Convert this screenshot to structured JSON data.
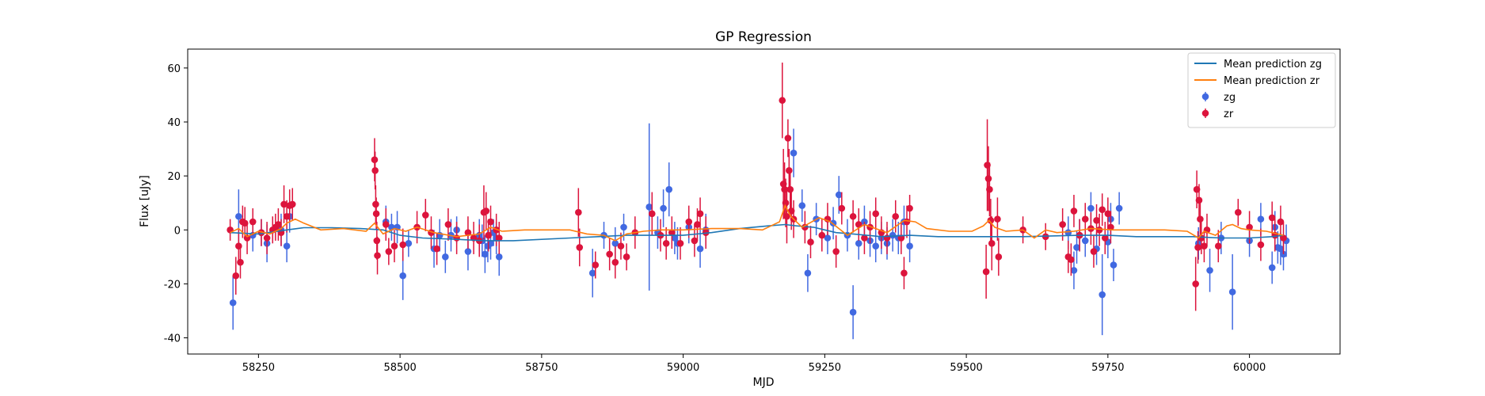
{
  "chart_data": {
    "type": "scatter",
    "title": "GP Regression",
    "xlabel": "MJD",
    "ylabel": "Flux [uJy]",
    "xlim": [
      58125,
      60160
    ],
    "ylim": [
      -46,
      67
    ],
    "xticks": [
      58250,
      58500,
      58750,
      59000,
      59250,
      59500,
      59750,
      60000
    ],
    "yticks": [
      -40,
      -20,
      0,
      20,
      40,
      60
    ],
    "legend": {
      "placement": "top-right",
      "entries": [
        "Mean prediction zg",
        "Mean prediction zr",
        "zg",
        "zr"
      ]
    },
    "colors": {
      "zg_line": "#1f77b4",
      "zr_line": "#ff7f0e",
      "zg_points": "#4169e1",
      "zr_points": "#dc143c"
    },
    "series": [
      {
        "name": "Mean prediction zg",
        "kind": "line",
        "x": [
          58200,
          58250,
          58300,
          58330,
          58380,
          58430,
          58470,
          58500,
          58540,
          58600,
          58650,
          58700,
          58800,
          58900,
          59000,
          59050,
          59100,
          59150,
          59180,
          59200,
          59230,
          59250,
          59270,
          59300,
          59350,
          59400,
          59450,
          59500,
          59600,
          59700,
          59750,
          59800,
          59900,
          59950,
          60000,
          60040,
          60060
        ],
        "y": [
          -1.0,
          -1.5,
          0.0,
          0.8,
          0.8,
          0.5,
          0.0,
          -2.0,
          -3.0,
          -3.5,
          -4.0,
          -4.0,
          -3.0,
          -2.0,
          -2.0,
          -1.0,
          0.5,
          1.5,
          2.0,
          1.5,
          1.0,
          0.0,
          -1.0,
          -1.5,
          -2.5,
          -2.0,
          -2.5,
          -2.5,
          -2.5,
          -2.0,
          -2.0,
          -2.5,
          -2.5,
          -3.0,
          -3.0,
          -2.5,
          -2.0
        ]
      },
      {
        "name": "Mean prediction zr",
        "kind": "line",
        "x": [
          58200,
          58215,
          58230,
          58250,
          58270,
          58290,
          58300,
          58315,
          58330,
          58360,
          58400,
          58440,
          58455,
          58470,
          58490,
          58510,
          58530,
          58560,
          58600,
          58640,
          58660,
          58680,
          58720,
          58800,
          58830,
          58860,
          58880,
          58900,
          58930,
          58960,
          59000,
          59050,
          59100,
          59140,
          59170,
          59180,
          59190,
          59210,
          59240,
          59260,
          59290,
          59320,
          59360,
          59390,
          59410,
          59430,
          59470,
          59510,
          59530,
          59540,
          59550,
          59570,
          59600,
          59620,
          59640,
          59660,
          59690,
          59720,
          59760,
          59800,
          59850,
          59890,
          59910,
          59920,
          59940,
          59960,
          59970,
          59985,
          60000,
          60030,
          60060
        ],
        "y": [
          -1.0,
          0.5,
          -2.5,
          -0.5,
          -1.5,
          0.5,
          2.5,
          4.0,
          2.5,
          0.0,
          0.5,
          -0.5,
          2.5,
          -1.5,
          0.5,
          -0.5,
          1.0,
          -1.0,
          -2.5,
          -1.5,
          1.0,
          -0.5,
          0.0,
          0.0,
          -1.5,
          -2.0,
          -4.0,
          -1.5,
          -0.5,
          0.0,
          0.0,
          0.5,
          0.5,
          0.0,
          3.0,
          9.0,
          5.0,
          1.0,
          4.5,
          3.0,
          -2.0,
          2.0,
          -1.0,
          3.5,
          3.0,
          0.5,
          -0.5,
          -0.5,
          1.5,
          3.5,
          1.0,
          -0.5,
          0.0,
          -3.0,
          0.0,
          -1.0,
          -0.5,
          0.5,
          0.0,
          0.0,
          0.0,
          -0.5,
          -3.0,
          -0.5,
          -2.0,
          1.5,
          2.0,
          0.5,
          0.0,
          -0.5,
          -2.0
        ]
      },
      {
        "name": "zg",
        "kind": "errorbar",
        "x": [
          58205,
          58215,
          58240,
          58255,
          58265,
          58290,
          58300,
          58305,
          58475,
          58485,
          58495,
          58505,
          58515,
          58560,
          58570,
          58580,
          58590,
          58600,
          58620,
          58640,
          58645,
          58650,
          58655,
          58660,
          58665,
          58670,
          58675,
          58840,
          58860,
          58880,
          58895,
          58940,
          58955,
          58965,
          58975,
          58985,
          58990,
          59010,
          59030,
          59040,
          59195,
          59210,
          59220,
          59235,
          59255,
          59265,
          59275,
          59290,
          59300,
          59310,
          59320,
          59330,
          59340,
          59350,
          59360,
          59370,
          59380,
          59390,
          59400,
          59680,
          59690,
          59695,
          59700,
          59710,
          59720,
          59730,
          59740,
          59750,
          59755,
          59760,
          59770,
          59910,
          59930,
          59950,
          59970,
          60000,
          60020,
          60040,
          60045,
          60050,
          60055,
          60060,
          60065
        ],
        "y": [
          -27.0,
          5.0,
          -2.0,
          -1.0,
          -5.0,
          0.0,
          -6.0,
          5.0,
          3.0,
          1.0,
          1.0,
          -17.0,
          -5.0,
          -7.0,
          -2.0,
          -10.0,
          -2.0,
          0.0,
          -8.0,
          -2.0,
          -4.0,
          -9.0,
          -6.0,
          -5.0,
          -1.0,
          -3.0,
          -10.0,
          -16.0,
          -2.0,
          -5.0,
          1.0,
          8.5,
          -1.0,
          8.0,
          15.0,
          -3.0,
          -5.0,
          1.0,
          -7.0,
          0.0,
          28.5,
          9.0,
          -16.0,
          4.0,
          -3.0,
          2.5,
          13.0,
          -2.0,
          -30.5,
          -5.0,
          3.0,
          -4.0,
          -6.0,
          -3.0,
          -5.0,
          -2.0,
          -3.0,
          3.0,
          -6.0,
          -1.0,
          -15.0,
          -6.5,
          -2.0,
          -4.0,
          8.0,
          -7.0,
          -24.0,
          -4.5,
          4.0,
          -13.0,
          8.0,
          -5.0,
          -15.0,
          -3.0,
          -23.0,
          -4.0,
          4.0,
          -14.0,
          1.0,
          -6.5,
          -7.0,
          -9.0,
          -4.0
        ],
        "yerr": [
          10,
          10,
          6,
          5,
          7,
          6,
          6,
          6,
          6,
          5,
          6,
          9,
          5,
          7,
          6,
          6,
          6,
          5,
          7,
          6,
          6,
          7,
          6,
          6,
          5,
          6,
          7,
          9,
          5,
          6,
          5,
          31,
          6,
          7,
          10,
          6,
          6,
          6,
          7,
          6,
          9,
          6,
          7,
          6,
          6,
          6,
          7,
          6,
          10,
          6,
          6,
          6,
          6,
          6,
          6,
          6,
          6,
          6,
          6,
          6,
          7,
          6,
          6,
          6,
          6,
          6,
          15,
          6,
          6,
          6,
          6,
          6,
          8,
          6,
          14,
          6,
          6,
          6,
          6,
          6,
          6,
          6,
          6
        ]
      },
      {
        "name": "zr",
        "kind": "errorbar",
        "x": [
          58200,
          58210,
          58215,
          58218,
          58222,
          58226,
          58230,
          58240,
          58255,
          58265,
          58275,
          58280,
          58285,
          58290,
          58295,
          58300,
          58305,
          58310,
          58455,
          58456,
          58457,
          58458,
          58459,
          58460,
          58475,
          58480,
          58490,
          58505,
          58530,
          58545,
          58555,
          58565,
          58585,
          58600,
          58620,
          58630,
          58640,
          58648,
          58652,
          58656,
          58660,
          58670,
          58675,
          58815,
          58817,
          58845,
          58870,
          58880,
          58890,
          58900,
          58915,
          58945,
          58960,
          58970,
          58980,
          58995,
          59010,
          59020,
          59025,
          59030,
          59040,
          59175,
          59177,
          59179,
          59181,
          59183,
          59185,
          59187,
          59189,
          59191,
          59195,
          59215,
          59225,
          59245,
          59255,
          59270,
          59280,
          59300,
          59310,
          59320,
          59330,
          59340,
          59350,
          59360,
          59375,
          59385,
          59390,
          59395,
          59400,
          59535,
          59537,
          59539,
          59541,
          59543,
          59545,
          59555,
          59557,
          59600,
          59640,
          59670,
          59680,
          59685,
          59690,
          59700,
          59710,
          59720,
          59725,
          59730,
          59735,
          59740,
          59745,
          59750,
          59755,
          59905,
          59907,
          59909,
          59911,
          59913,
          59915,
          59920,
          59925,
          59945,
          59980,
          60000,
          60020,
          60040,
          60045,
          60055,
          60060
        ],
        "y": [
          0.0,
          -17.0,
          -6.0,
          -12.0,
          3.0,
          2.5,
          -3.0,
          3.0,
          -1.0,
          -3.0,
          0.0,
          1.0,
          2.0,
          -1.0,
          9.5,
          5.0,
          9.0,
          9.5,
          26.0,
          22.0,
          9.5,
          6.0,
          -4.0,
          -9.5,
          2.0,
          -8.0,
          -6.0,
          -5.5,
          1.0,
          5.5,
          -1.0,
          -7.0,
          2.0,
          -3.0,
          -1.0,
          -3.0,
          -4.0,
          6.5,
          7.0,
          -2.0,
          3.0,
          0.0,
          -3.0,
          6.5,
          -6.5,
          -13.0,
          -9.0,
          -12.0,
          -6.0,
          -10.0,
          -1.0,
          6.0,
          -2.0,
          -5.0,
          -1.0,
          -5.0,
          3.0,
          -4.0,
          2.0,
          6.0,
          -1.0,
          48.0,
          17.0,
          15.0,
          10.0,
          5.0,
          34.0,
          22.0,
          15.0,
          7.0,
          4.0,
          1.0,
          -4.5,
          -2.0,
          4.0,
          -8.0,
          8.0,
          5.0,
          2.0,
          -3.0,
          1.0,
          6.0,
          -1.0,
          -3.0,
          5.0,
          -3.0,
          -16.0,
          3.0,
          8.0,
          -15.5,
          24.0,
          19.0,
          15.0,
          3.5,
          -5.0,
          4.0,
          -10.0,
          0.0,
          -2.5,
          2.0,
          -10.0,
          -11.0,
          7.0,
          -2.0,
          4.0,
          0.5,
          -8.0,
          3.5,
          0.0,
          7.5,
          -3.0,
          6.0,
          1.0,
          -20.0,
          15.0,
          -6.5,
          11.0,
          4.0,
          -3.0,
          -6.0,
          0.0,
          -6.0,
          6.5,
          1.0,
          -5.5,
          4.5,
          -2.0,
          3.0,
          -3.0
        ],
        "yerr": [
          4,
          7,
          6,
          6,
          6,
          6,
          6,
          5,
          5,
          6,
          5,
          5,
          6,
          5,
          7,
          6,
          6,
          6,
          8,
          7,
          7,
          6,
          7,
          7,
          6,
          5,
          6,
          6,
          6,
          6,
          6,
          6,
          6,
          6,
          6,
          6,
          6,
          10,
          7,
          6,
          6,
          6,
          6,
          9,
          7,
          5,
          6,
          6,
          5,
          5,
          6,
          8,
          6,
          6,
          6,
          6,
          6,
          6,
          6,
          6,
          6,
          14,
          13,
          10,
          9,
          10,
          7,
          8,
          8,
          7,
          7,
          6,
          6,
          6,
          6,
          6,
          6,
          6,
          6,
          6,
          6,
          6,
          6,
          6,
          6,
          6,
          6,
          6,
          5,
          10,
          17,
          12,
          10,
          8,
          10,
          8,
          7,
          5,
          5,
          6,
          6,
          6,
          6,
          6,
          6,
          6,
          6,
          6,
          6,
          6,
          6,
          6,
          6,
          10,
          7,
          6,
          6,
          6,
          6,
          6,
          6,
          6,
          5,
          6,
          6,
          6,
          6,
          6,
          6
        ]
      }
    ]
  }
}
